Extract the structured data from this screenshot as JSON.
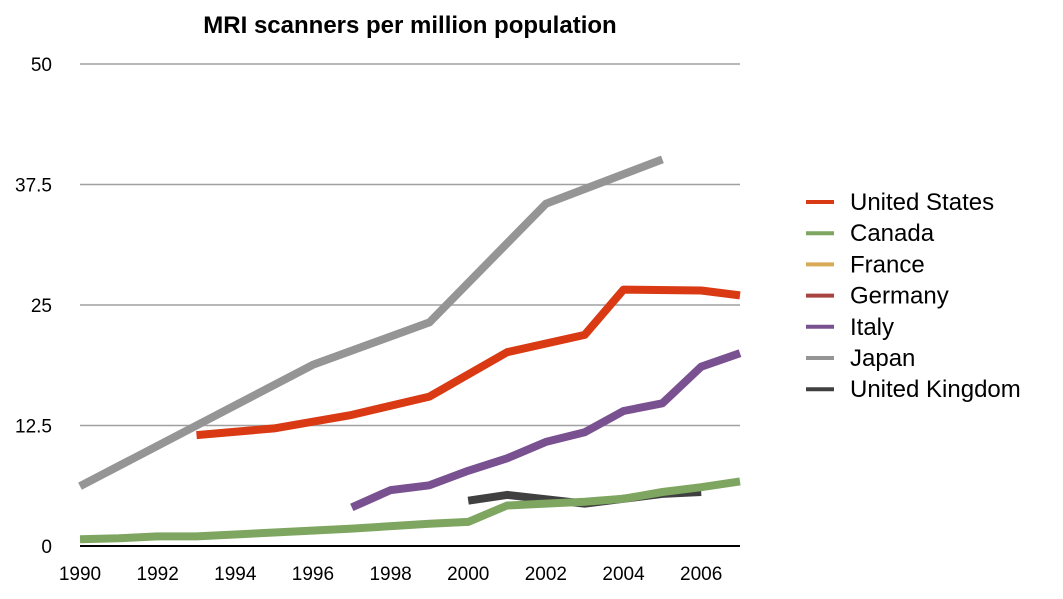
{
  "chart_data": {
    "type": "line",
    "title": "MRI scanners per million population",
    "xlabel": "",
    "ylabel": "",
    "xlim": [
      1990,
      2007
    ],
    "ylim": [
      0,
      50
    ],
    "x_ticks": [
      "1990",
      "1992",
      "1994",
      "1996",
      "1998",
      "2000",
      "2002",
      "2004",
      "2006"
    ],
    "y_ticks": [
      "0",
      "12.5",
      "25",
      "37.5",
      "50"
    ],
    "grid": "horizontal",
    "legend_position": "right",
    "series": [
      {
        "name": "United States",
        "color": "#d93a14",
        "points": [
          [
            1993,
            11.5
          ],
          [
            1995,
            12.2
          ],
          [
            1997,
            13.6
          ],
          [
            1999,
            15.5
          ],
          [
            2001,
            20.1
          ],
          [
            2003,
            21.9
          ],
          [
            2004,
            26.6
          ],
          [
            2006,
            26.5
          ],
          [
            2007,
            26.0
          ]
        ]
      },
      {
        "name": "Canada",
        "color": "#7fa661",
        "points": [
          [
            1990,
            0.7
          ],
          [
            1991,
            0.8
          ],
          [
            1992,
            1.0
          ],
          [
            1993,
            1.0
          ],
          [
            1995,
            1.4
          ],
          [
            1997,
            1.8
          ],
          [
            1999,
            2.3
          ],
          [
            2000,
            2.5
          ],
          [
            2001,
            4.2
          ],
          [
            2002,
            4.4
          ],
          [
            2003,
            4.6
          ],
          [
            2004,
            4.9
          ],
          [
            2005,
            5.6
          ],
          [
            2006,
            6.1
          ],
          [
            2007,
            6.7
          ]
        ]
      },
      {
        "name": "France",
        "color": "#d9aa55",
        "points": []
      },
      {
        "name": "Germany",
        "color": "#a8433f",
        "points": []
      },
      {
        "name": "Italy",
        "color": "#7a5190",
        "points": [
          [
            1997,
            4.0
          ],
          [
            1998,
            5.8
          ],
          [
            1999,
            6.3
          ],
          [
            2000,
            7.8
          ],
          [
            2001,
            9.1
          ],
          [
            2002,
            10.8
          ],
          [
            2003,
            11.8
          ],
          [
            2004,
            14.0
          ],
          [
            2005,
            14.8
          ],
          [
            2006,
            18.6
          ],
          [
            2007,
            20.0
          ]
        ]
      },
      {
        "name": "Japan",
        "color": "#959595",
        "points": [
          [
            1990,
            6.2
          ],
          [
            1996,
            18.8
          ],
          [
            1999,
            23.2
          ],
          [
            2002,
            35.5
          ],
          [
            2005,
            40.1
          ]
        ]
      },
      {
        "name": "United Kingdom",
        "color": "#404040",
        "points": [
          [
            2000,
            4.7
          ],
          [
            2001,
            5.3
          ],
          [
            2003,
            4.4
          ],
          [
            2005,
            5.4
          ],
          [
            2006,
            5.6
          ]
        ]
      }
    ]
  }
}
